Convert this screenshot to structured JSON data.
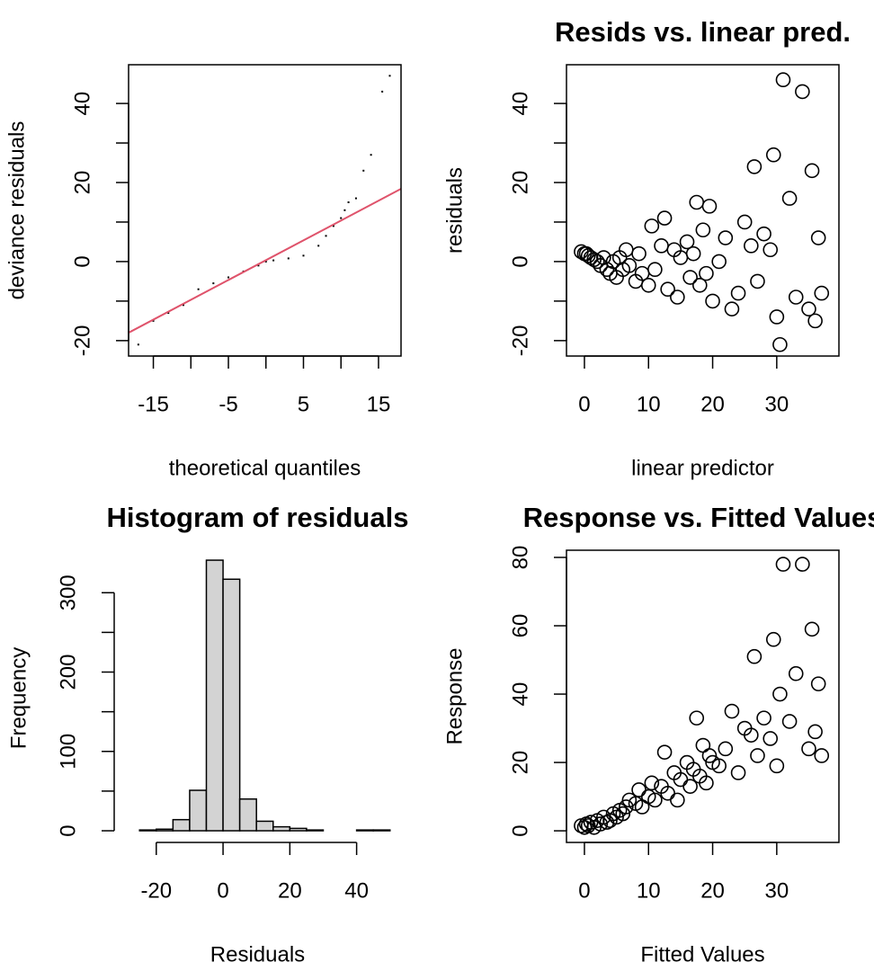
{
  "chart_data": [
    {
      "type": "qq",
      "xlabel": "theoretical quantiles",
      "ylabel": "deviance residuals",
      "x": [
        -17,
        -15,
        -13,
        -11,
        -9,
        -7,
        -5,
        -3,
        -1,
        0,
        1,
        3,
        5,
        7,
        8,
        9,
        10,
        10.5,
        11,
        12,
        13,
        14,
        15.5,
        16.5
      ],
      "y": [
        -21,
        -15,
        -13,
        -11,
        -7,
        -5.5,
        -4,
        -2.5,
        -1,
        0,
        0.3,
        0.8,
        1.5,
        4,
        6.5,
        9,
        11,
        13,
        15,
        16,
        23,
        27,
        43,
        47
      ],
      "color": "#000000",
      "reference_line": {
        "x": [
          -18.3,
          18.0
        ],
        "y": [
          -18.0,
          18.4
        ],
        "color": "#df536b"
      },
      "xlim": [
        -18.3,
        18.0
      ],
      "ylim": [
        -23.9,
        49.8
      ],
      "xticks": [
        -15,
        {
          "value": -10,
          "label": null
        },
        -5,
        {
          "value": 0,
          "label": null
        },
        5,
        {
          "value": 10,
          "label": null
        },
        15
      ],
      "yticks": [
        -20,
        {
          "value": -10,
          "label": null
        },
        0,
        {
          "value": 10,
          "label": null
        },
        20,
        {
          "value": 30,
          "label": null
        },
        40
      ]
    },
    {
      "type": "scatter",
      "title": "Resids vs. linear pred.",
      "xlabel": "linear predictor",
      "ylabel": "residuals",
      "x": [
        -0.5,
        0,
        0.3,
        0.6,
        1,
        1.5,
        2,
        2.5,
        3,
        3.5,
        4,
        4.5,
        5,
        5.5,
        6,
        6.5,
        7,
        8,
        8.5,
        9,
        10,
        10.5,
        11,
        12,
        12.5,
        13,
        14,
        14.5,
        15,
        16,
        16.5,
        17,
        17.5,
        18,
        18.5,
        19,
        19.5,
        20,
        21,
        22,
        23,
        24,
        25,
        26,
        26.5,
        27,
        28,
        29,
        29.5,
        30,
        30.5,
        31,
        32,
        33,
        34,
        35,
        35.5,
        36,
        36.5,
        37
      ],
      "y": [
        2.5,
        2,
        2,
        1.5,
        1,
        0.5,
        0,
        -1,
        1,
        -2,
        -3,
        0,
        -4,
        1,
        -2,
        3,
        -1,
        -5,
        2,
        -3,
        -6,
        9,
        -2,
        4,
        11,
        -7,
        3,
        -9,
        1,
        5,
        -4,
        2,
        15,
        -6,
        8,
        -3,
        14,
        -10,
        0,
        6,
        -12,
        -8,
        10,
        4,
        24,
        -5,
        7,
        3,
        27,
        -14,
        -21,
        46,
        16,
        -9,
        43,
        -12,
        23,
        -15,
        6,
        -8
      ],
      "color": "#000000",
      "xlim": [
        -2.8,
        39.7
      ],
      "ylim": [
        -23.9,
        49.8
      ],
      "xticks": [
        0,
        10,
        20,
        30
      ],
      "yticks": [
        -20,
        {
          "value": -10,
          "label": null
        },
        0,
        {
          "value": 10,
          "label": null
        },
        20,
        {
          "value": 30,
          "label": null
        },
        40
      ]
    },
    {
      "type": "histogram",
      "title": "Histogram of residuals",
      "xlabel": "Residuals",
      "ylabel": "Frequency",
      "bins": [
        -25,
        -20,
        -15,
        -10,
        -5,
        0,
        5,
        10,
        15,
        20,
        25,
        30,
        35,
        40,
        45,
        50
      ],
      "counts": [
        1,
        2,
        14,
        51,
        341,
        317,
        40,
        12,
        5,
        3,
        1,
        0,
        0,
        1,
        1
      ],
      "color": "#d3d3d3",
      "xlim": [
        -32.6,
        53.3
      ],
      "ylim": [
        -14.7,
        349
      ],
      "xticks": [
        -20,
        0,
        20,
        40
      ],
      "yticks": [
        0,
        {
          "value": 50,
          "label": null
        },
        100,
        {
          "value": 150,
          "label": null
        },
        200,
        {
          "value": 250,
          "label": null
        },
        300
      ]
    },
    {
      "type": "scatter",
      "title": "Response vs. Fitted Values",
      "xlabel": "Fitted Values",
      "ylabel": "Response",
      "x": [
        -0.5,
        0,
        0.3,
        0.6,
        1,
        1.5,
        2,
        2.5,
        3,
        3.5,
        4,
        4.5,
        5,
        5.5,
        6,
        6.5,
        7,
        8,
        8.5,
        9,
        10,
        10.5,
        11,
        12,
        12.5,
        13,
        14,
        14.5,
        15,
        16,
        16.5,
        17,
        17.5,
        18,
        18.5,
        19,
        19.5,
        20,
        21,
        22,
        23,
        24,
        25,
        26,
        26.5,
        27,
        28,
        29,
        29.5,
        30,
        30.5,
        31,
        32,
        33,
        34,
        35,
        35.5,
        36,
        36.5,
        37
      ],
      "y": [
        1.5,
        1,
        2,
        1.5,
        2.5,
        1,
        3,
        2,
        4,
        2.5,
        3,
        5,
        4,
        6,
        5,
        7,
        9,
        8,
        12,
        7,
        10,
        14,
        9,
        13,
        23,
        11,
        17,
        9,
        15,
        20,
        13,
        18,
        33,
        16,
        25,
        14,
        22,
        20,
        19,
        24,
        35,
        17,
        30,
        28,
        51,
        22,
        33,
        27,
        56,
        19,
        40,
        78,
        32,
        46,
        78,
        24,
        59,
        29,
        43,
        22
      ],
      "color": "#000000",
      "xlim": [
        -2.8,
        39.7
      ],
      "ylim": [
        -3.4,
        82.1
      ],
      "xticks": [
        0,
        10,
        20,
        30
      ],
      "yticks": [
        0,
        20,
        40,
        60,
        80
      ]
    }
  ]
}
